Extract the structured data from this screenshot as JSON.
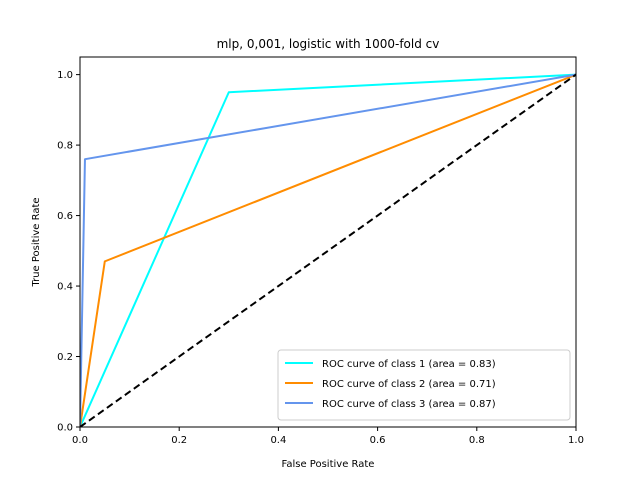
{
  "chart_data": {
    "type": "line",
    "title": "mlp, 0,001, logistic with 1000-fold cv",
    "xlabel": "False Positive Rate",
    "ylabel": "True Positive Rate",
    "xlim": [
      0.0,
      1.0
    ],
    "ylim": [
      0.0,
      1.05
    ],
    "grid": false,
    "legend_position": "lower right",
    "xticks": [
      0.0,
      0.2,
      0.4,
      0.6,
      0.8,
      1.0
    ],
    "yticks": [
      0.0,
      0.2,
      0.4,
      0.6,
      0.8,
      1.0
    ],
    "xtick_labels": [
      "0.0",
      "0.2",
      "0.4",
      "0.6",
      "0.8",
      "1.0"
    ],
    "ytick_labels": [
      "0.0",
      "0.2",
      "0.4",
      "0.6",
      "0.8",
      "1.0"
    ],
    "series": [
      {
        "name": "ROC curve of class 1 (area = 0.83)",
        "color": "#00ffff",
        "x": [
          0.0,
          0.3,
          1.0
        ],
        "y": [
          0.0,
          0.95,
          1.0
        ]
      },
      {
        "name": "ROC curve of class 2 (area = 0.71)",
        "color": "#ff8c00",
        "x": [
          0.0,
          0.05,
          1.0
        ],
        "y": [
          0.0,
          0.47,
          1.0
        ]
      },
      {
        "name": "ROC curve of class 3 (area = 0.87)",
        "color": "#6495ed",
        "x": [
          0.0,
          0.01,
          1.0
        ],
        "y": [
          0.0,
          0.76,
          1.0
        ]
      }
    ],
    "reference_line": {
      "color": "#000000",
      "style": "dashed",
      "x": [
        0.0,
        1.0
      ],
      "y": [
        0.0,
        1.0
      ]
    }
  }
}
